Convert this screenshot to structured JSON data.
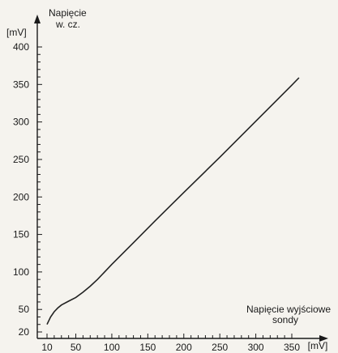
{
  "chart_data": {
    "type": "line",
    "title": "",
    "ylabel_unit": "[mV]",
    "ylabel_lines": [
      "Napięcie",
      "w. cz."
    ],
    "xlabel_unit": "[mV]",
    "xlabel_lines": [
      "Napięcie wyjściowe",
      "sondy"
    ],
    "xlim": [
      10,
      350
    ],
    "ylim": [
      20,
      400
    ],
    "x_ticks": [
      10,
      50,
      100,
      150,
      200,
      250,
      300,
      350
    ],
    "y_ticks": [
      20,
      50,
      100,
      150,
      200,
      250,
      300,
      350,
      400
    ],
    "grid": false,
    "line_color": "#222222",
    "series": [
      {
        "x": [
          10,
          15,
          20,
          25,
          30,
          40,
          50,
          60,
          70,
          80,
          100,
          130,
          160,
          200,
          250,
          300,
          350,
          360
        ],
        "y": [
          30,
          40,
          47,
          52,
          56,
          61,
          66,
          73,
          81,
          90,
          110,
          139,
          168,
          206,
          253,
          301,
          349,
          359
        ]
      }
    ]
  }
}
